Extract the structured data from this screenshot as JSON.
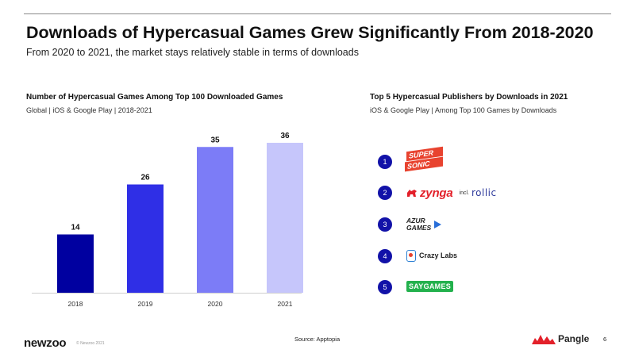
{
  "header": {
    "title": "Downloads of Hypercasual Games Grew Significantly From 2018-2020",
    "subtitle": "From 2020 to 2021, the market stays relatively stable in terms of downloads"
  },
  "chart_data": {
    "type": "bar",
    "title": "Number of Hypercasual Games Among Top 100 Downloaded Games",
    "subtitle": "Global | iOS & Google Play | 2018-2021",
    "categories": [
      "2018",
      "2019",
      "2020",
      "2021"
    ],
    "values": [
      14,
      26,
      35,
      36
    ],
    "colors": [
      "#0000a0",
      "#2f2fe6",
      "#7c7cf7",
      "#c6c6fb"
    ],
    "ylim": [
      0,
      40
    ],
    "grid": false,
    "xlabel": "",
    "ylabel": ""
  },
  "publishers": {
    "title": "Top 5 Hypercasual Publishers by Downloads in 2021",
    "subtitle": "iOS & Google Play | Among Top 100 Games by Downloads",
    "rank_color": "#1212a8",
    "items": [
      {
        "rank": "1",
        "logo_lines": [
          "SUPER",
          "SONIC"
        ],
        "icon": "supersonic-logo",
        "color": "#e8432f"
      },
      {
        "rank": "2",
        "logo_text": "zynga",
        "extra_prefix": "incl.",
        "extra": "rollic",
        "icon": "zynga-logo",
        "color": "#e3202a"
      },
      {
        "rank": "3",
        "logo_lines": [
          "AZUR",
          "GAMES"
        ],
        "icon": "azur-games-logo",
        "color": "#222222"
      },
      {
        "rank": "4",
        "logo_text": "Crazy Labs",
        "icon": "crazy-labs-logo",
        "color": "#222222"
      },
      {
        "rank": "5",
        "logo_text": "SAYGAMES",
        "icon": "saygames-logo",
        "color": "#23b14d"
      }
    ]
  },
  "footer": {
    "brand": "newzoo",
    "copyright": "© Newzoo 2021",
    "source": "Source: Apptopia",
    "partner": "Pangle",
    "page": "6"
  }
}
